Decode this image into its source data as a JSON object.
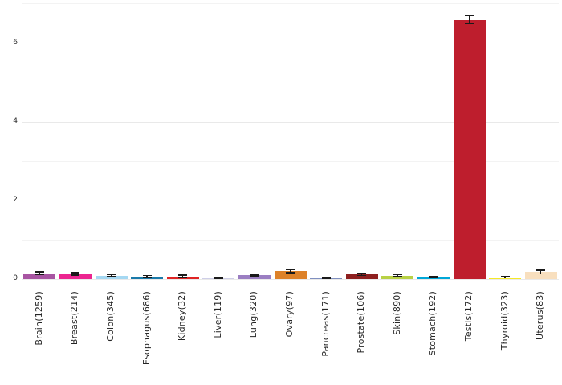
{
  "figure": {
    "background": "#ffffff"
  },
  "chart_data": {
    "type": "bar",
    "title": "",
    "xlabel": "",
    "ylabel": "",
    "legend": "none",
    "grid": "horizontal",
    "x_tick_rotation": 90,
    "categories": [
      "Brain(1259)",
      "Breast(214)",
      "Colon(345)",
      "Esophagus(686)",
      "Kidney(32)",
      "Liver(119)",
      "Lung(320)",
      "Ovary(97)",
      "Pancreas(171)",
      "Prostate(106)",
      "Skin(890)",
      "Stomach(192)",
      "Testis(172)",
      "Thyroid(323)",
      "Uterus(83)"
    ],
    "values": [
      0.15,
      0.13,
      0.09,
      0.07,
      0.07,
      0.04,
      0.1,
      0.2,
      0.03,
      0.12,
      0.09,
      0.06,
      6.6,
      0.05,
      0.18
    ],
    "errors": [
      0.04,
      0.03,
      0.02,
      0.02,
      0.03,
      0.015,
      0.02,
      0.04,
      0.01,
      0.03,
      0.02,
      0.015,
      0.1,
      0.02,
      0.05
    ],
    "bar_colors": [
      "#a855a2",
      "#ec2590",
      "#a5d8f2",
      "#1a7aaa",
      "#e02424",
      "#cfcfe8",
      "#9b7ec2",
      "#dd8128",
      "#8090c0",
      "#8e1f1f",
      "#b8d145",
      "#00a7d8",
      "#be1e2d",
      "#f5e928",
      "#f8dfbe"
    ],
    "ylim": [
      0,
      7.02
    ],
    "yticks": [
      0,
      2,
      4,
      6
    ],
    "y_gridlines": [
      0,
      1,
      2,
      3,
      4,
      5,
      6,
      7
    ],
    "grid_major_color": "#e9e9e9",
    "grid_minor_color": "#f3f3f3",
    "error_bar_color": "#1a1a1a",
    "tick_label_color": "#262626"
  }
}
